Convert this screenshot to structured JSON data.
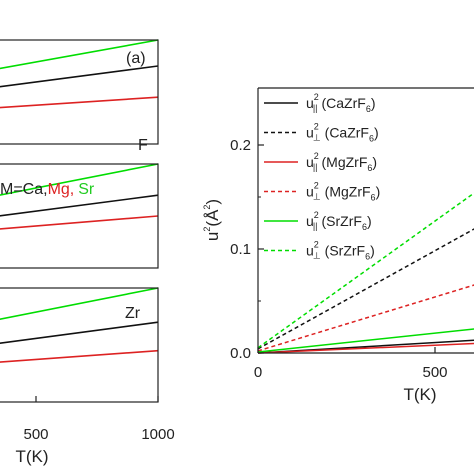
{
  "chart_data": [
    {
      "type": "line",
      "panel_label": "(a)",
      "subpanels": [
        {
          "atom_label": "F",
          "series": [
            {
              "color": "#00dd00",
              "x": [
                0,
                1000
              ],
              "y": [
                0.45,
                1.0
              ]
            },
            {
              "color": "#111111",
              "x": [
                0,
                1000
              ],
              "y": [
                0.35,
                0.75
              ]
            },
            {
              "color": "#dd2222",
              "x": [
                0,
                1000
              ],
              "y": [
                0.25,
                0.45
              ]
            }
          ]
        },
        {
          "annotation_prefix": "M=Ca,",
          "annotation_mg": "Mg,",
          "annotation_sr": "Sr",
          "series": [
            {
              "color": "#00dd00",
              "x": [
                0,
                1000
              ],
              "y": [
                0.4,
                1.0
              ]
            },
            {
              "color": "#111111",
              "x": [
                0,
                1000
              ],
              "y": [
                0.3,
                0.7
              ]
            },
            {
              "color": "#dd2222",
              "x": [
                0,
                1000
              ],
              "y": [
                0.25,
                0.5
              ]
            }
          ]
        },
        {
          "atom_label": "Zr",
          "series": [
            {
              "color": "#00dd00",
              "x": [
                0,
                1000
              ],
              "y": [
                0.45,
                1.0
              ]
            },
            {
              "color": "#111111",
              "x": [
                0,
                1000
              ],
              "y": [
                0.33,
                0.7
              ]
            },
            {
              "color": "#dd2222",
              "x": [
                0,
                1000
              ],
              "y": [
                0.25,
                0.45
              ]
            }
          ]
        }
      ],
      "xlabel": "T(K)",
      "xticks": [
        "500",
        "1000"
      ]
    },
    {
      "type": "line",
      "xlabel": "T(K)",
      "ylabel": "u",
      "ylabel_sup": "2",
      "ylabel_unit": "(Å",
      "ylabel_unit_sup": "2",
      "ylabel_close": ")",
      "xlim": [
        0,
        800
      ],
      "ylim": [
        0,
        0.25
      ],
      "xticks": [
        "0",
        "500"
      ],
      "yticks": [
        "0.0",
        "0.1",
        "0.2"
      ],
      "series": [
        {
          "name_u": "u",
          "name_sup": "2",
          "name_sub": "||",
          "name_comp": "(CaZrF",
          "name_comp_sub": "6",
          "name_close": ")",
          "color": "#111111",
          "dash": "solid",
          "x": [
            0,
            800
          ],
          "y": [
            0,
            0.016
          ]
        },
        {
          "name_u": "u",
          "name_sup": "2",
          "name_sub": "⊥",
          "name_comp": "(CaZrF",
          "name_comp_sub": "6",
          "name_close": ")",
          "color": "#111111",
          "dash": "dashed",
          "x": [
            0,
            800
          ],
          "y": [
            0.004,
            0.155
          ]
        },
        {
          "name_u": "u",
          "name_sup": "2",
          "name_sub": "||",
          "name_comp": "(MgZrF",
          "name_comp_sub": "6",
          "name_close": ")",
          "color": "#dd2222",
          "dash": "solid",
          "x": [
            0,
            800
          ],
          "y": [
            0,
            0.012
          ]
        },
        {
          "name_u": "u",
          "name_sup": "2",
          "name_sub": "⊥",
          "name_comp": "(MgZrF",
          "name_comp_sub": "6",
          "name_close": ")",
          "color": "#dd2222",
          "dash": "dashed",
          "x": [
            0,
            800
          ],
          "y": [
            0.002,
            0.085
          ]
        },
        {
          "name_u": "u",
          "name_sup": "2",
          "name_sub": "||",
          "name_comp": "(SrZrF",
          "name_comp_sub": "6",
          "name_close": ")",
          "color": "#00dd00",
          "dash": "solid",
          "x": [
            0,
            800
          ],
          "y": [
            0.001,
            0.03
          ]
        },
        {
          "name_u": "u",
          "name_sup": "2",
          "name_sub": "⊥",
          "name_comp": "(SrZrF",
          "name_comp_sub": "6",
          "name_close": ")",
          "color": "#00dd00",
          "dash": "dashed",
          "x": [
            0,
            800
          ],
          "y": [
            0.005,
            0.2
          ]
        }
      ]
    }
  ]
}
